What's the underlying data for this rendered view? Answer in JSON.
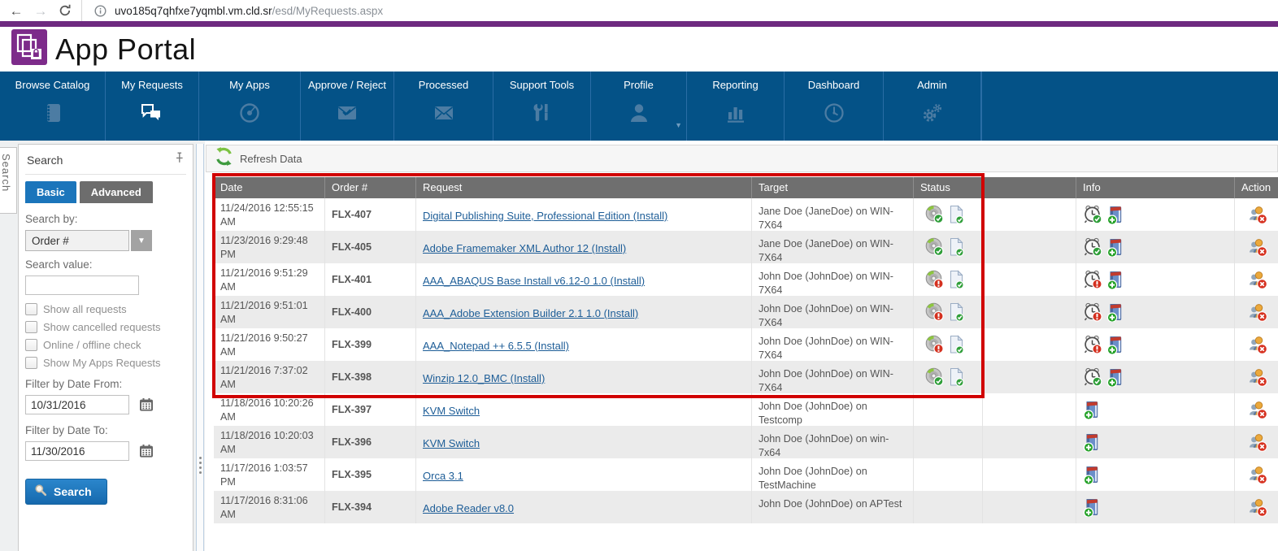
{
  "browser": {
    "url_host": "uvo185q7qhfxe7yqmbl.vm.cld.sr",
    "url_path": "/esd/MyRequests.aspx"
  },
  "header": {
    "app_name": "App Portal"
  },
  "nav": {
    "items": [
      {
        "label": "Browse Catalog",
        "icon": "catalog-icon",
        "active": false
      },
      {
        "label": "My Requests",
        "icon": "chat-bubbles-icon",
        "active": true
      },
      {
        "label": "My Apps",
        "icon": "disc-icon",
        "active": false
      },
      {
        "label": "Approve / Reject",
        "icon": "envelope-approve-icon",
        "active": false
      },
      {
        "label": "Processed",
        "icon": "envelope-icon",
        "active": false
      },
      {
        "label": "Support Tools",
        "icon": "tools-icon",
        "active": false
      },
      {
        "label": "Profile",
        "icon": "person-icon",
        "active": false,
        "has_dropdown": true
      },
      {
        "label": "Reporting",
        "icon": "bar-chart-icon",
        "active": false
      },
      {
        "label": "Dashboard",
        "icon": "gauge-icon",
        "active": false
      },
      {
        "label": "Admin",
        "icon": "gears-icon",
        "active": false
      }
    ]
  },
  "sidebar": {
    "vertical_tab": "Search",
    "title": "Search",
    "tabs": [
      {
        "label": "Basic",
        "active": true
      },
      {
        "label": "Advanced",
        "active": false
      }
    ],
    "search_by_label": "Search by:",
    "search_by_value": "Order #",
    "search_value_label": "Search value:",
    "search_value": "",
    "checkboxes": [
      {
        "label": "Show all requests",
        "checked": false
      },
      {
        "label": "Show cancelled requests",
        "checked": false
      },
      {
        "label": "Online / offline check",
        "checked": false
      },
      {
        "label": "Show My Apps Requests",
        "checked": false
      }
    ],
    "date_from_label": "Filter by Date From:",
    "date_from": "10/31/2016",
    "date_to_label": "Filter by Date To:",
    "date_to": "11/30/2016",
    "search_button_label": "Search"
  },
  "main": {
    "refresh_button_label": "Refresh Data",
    "table": {
      "columns": [
        "Date",
        "Order #",
        "Request",
        "Target",
        "Status",
        "",
        "Info",
        "Action"
      ],
      "rows": [
        {
          "date": "11/24/2016 12:55:15 AM",
          "order": "FLX-407",
          "request": "Digital Publishing Suite, Professional Edition (Install)",
          "target": "Jane Doe (JaneDoe) on WIN-7X64",
          "status_icons": [
            "disc-success-icon",
            "document-success-icon"
          ],
          "info_icons": [
            "alarmclock-success-icon",
            "install-add-icon"
          ],
          "action_icons": [
            "user-remove-icon"
          ]
        },
        {
          "date": "11/23/2016 9:29:48 PM",
          "order": "FLX-405",
          "request": "Adobe Framemaker XML Author 12 (Install)",
          "target": "Jane Doe (JaneDoe) on WIN-7X64",
          "status_icons": [
            "disc-success-icon",
            "document-success-icon"
          ],
          "info_icons": [
            "alarmclock-success-icon",
            "install-add-icon"
          ],
          "action_icons": [
            "user-remove-icon"
          ]
        },
        {
          "date": "11/21/2016 9:51:29 AM",
          "order": "FLX-401",
          "request": "AAA_ABAQUS Base Install v6.12-0 1.0 (Install)",
          "target": "John Doe (JohnDoe) on WIN-7X64",
          "status_icons": [
            "disc-error-icon",
            "document-success-icon"
          ],
          "info_icons": [
            "alarmclock-error-icon",
            "install-add-icon"
          ],
          "action_icons": [
            "user-remove-icon"
          ]
        },
        {
          "date": "11/21/2016 9:51:01 AM",
          "order": "FLX-400",
          "request": "AAA_Adobe Extension Builder 2.1 1.0 (Install)",
          "target": "John Doe (JohnDoe) on WIN-7X64",
          "status_icons": [
            "disc-error-icon",
            "document-success-icon"
          ],
          "info_icons": [
            "alarmclock-error-icon",
            "install-add-icon"
          ],
          "action_icons": [
            "user-remove-icon"
          ]
        },
        {
          "date": "11/21/2016 9:50:27 AM",
          "order": "FLX-399",
          "request": "AAA_Notepad ++ 6.5.5 (Install)",
          "target": "John Doe (JohnDoe) on WIN-7X64",
          "status_icons": [
            "disc-error-icon",
            "document-success-icon"
          ],
          "info_icons": [
            "alarmclock-error-icon",
            "install-add-icon"
          ],
          "action_icons": [
            "user-remove-icon"
          ]
        },
        {
          "date": "11/21/2016 7:37:02 AM",
          "order": "FLX-398",
          "request": "Winzip 12.0_BMC (Install)",
          "target": "John Doe (JohnDoe) on WIN-7X64",
          "status_icons": [
            "disc-success-icon",
            "document-success-icon"
          ],
          "info_icons": [
            "alarmclock-success-icon",
            "install-add-icon"
          ],
          "action_icons": [
            "user-remove-icon"
          ]
        },
        {
          "date": "11/18/2016 10:20:26 AM",
          "order": "FLX-397",
          "request": "KVM Switch",
          "target": "John Doe (JohnDoe) on Testcomp",
          "status_icons": [],
          "info_icons": [
            "install-add-icon"
          ],
          "action_icons": [
            "user-remove-icon"
          ]
        },
        {
          "date": "11/18/2016 10:20:03 AM",
          "order": "FLX-396",
          "request": "KVM Switch",
          "target": "John Doe (JohnDoe) on win-7x64",
          "status_icons": [],
          "info_icons": [
            "install-add-icon"
          ],
          "action_icons": [
            "user-remove-icon"
          ]
        },
        {
          "date": "11/17/2016 1:03:57 PM",
          "order": "FLX-395",
          "request": "Orca 3.1",
          "target": "John Doe (JohnDoe) on TestMachine",
          "status_icons": [],
          "info_icons": [
            "install-add-icon"
          ],
          "action_icons": [
            "user-remove-icon"
          ]
        },
        {
          "date": "11/17/2016 8:31:06 AM",
          "order": "FLX-394",
          "request": "Adobe Reader v8.0",
          "target": "John Doe (JohnDoe) on APTest",
          "status_icons": [],
          "info_icons": [
            "install-add-icon"
          ],
          "action_icons": [
            "user-remove-icon"
          ]
        }
      ]
    }
  },
  "colors": {
    "brand_purple": "#6e2a80",
    "nav_blue": "#045287",
    "accent_blue": "#1b75bb",
    "table_header_gray": "#6f6f6f",
    "row_alt_gray": "#ebebeb",
    "link_blue": "#1d5d97",
    "highlight_red": "#d10000"
  }
}
